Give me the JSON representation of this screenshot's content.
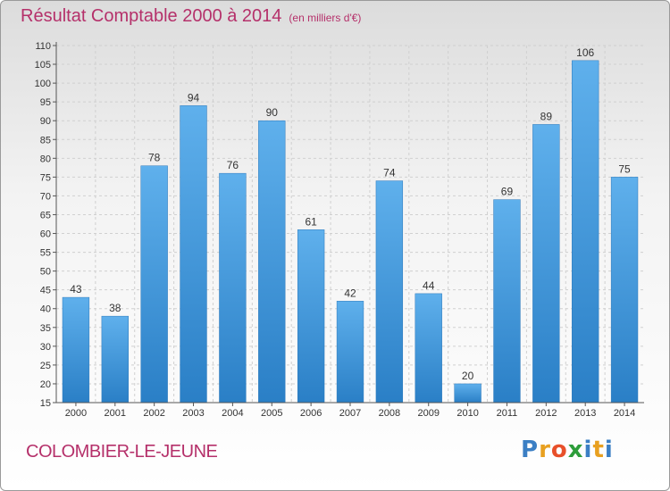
{
  "chart_data": {
    "type": "bar",
    "title": "Résultat Comptable 2000 à 2014",
    "subtitle": "(en milliers d'€)",
    "categories": [
      "2000",
      "2001",
      "2002",
      "2003",
      "2004",
      "2005",
      "2006",
      "2007",
      "2008",
      "2009",
      "2010",
      "2011",
      "2012",
      "2013",
      "2014"
    ],
    "values": [
      43,
      38,
      78,
      94,
      76,
      90,
      61,
      42,
      74,
      44,
      20,
      69,
      89,
      106,
      75
    ],
    "ylim": [
      15,
      110
    ],
    "yticks": [
      15,
      20,
      25,
      30,
      35,
      40,
      45,
      50,
      55,
      60,
      65,
      70,
      75,
      80,
      85,
      90,
      95,
      100,
      105,
      110
    ],
    "grid": true,
    "bar_color": "#3d94d8"
  },
  "footer": {
    "commune": "COLOMBIER-LE-JEUNE",
    "logo_text": "Proxiti",
    "logo_colors": [
      "#3b7fc4",
      "#e8a020",
      "#e8502a",
      "#2d9d3a",
      "#3b7fc4",
      "#e8a020",
      "#3b7fc4"
    ]
  }
}
